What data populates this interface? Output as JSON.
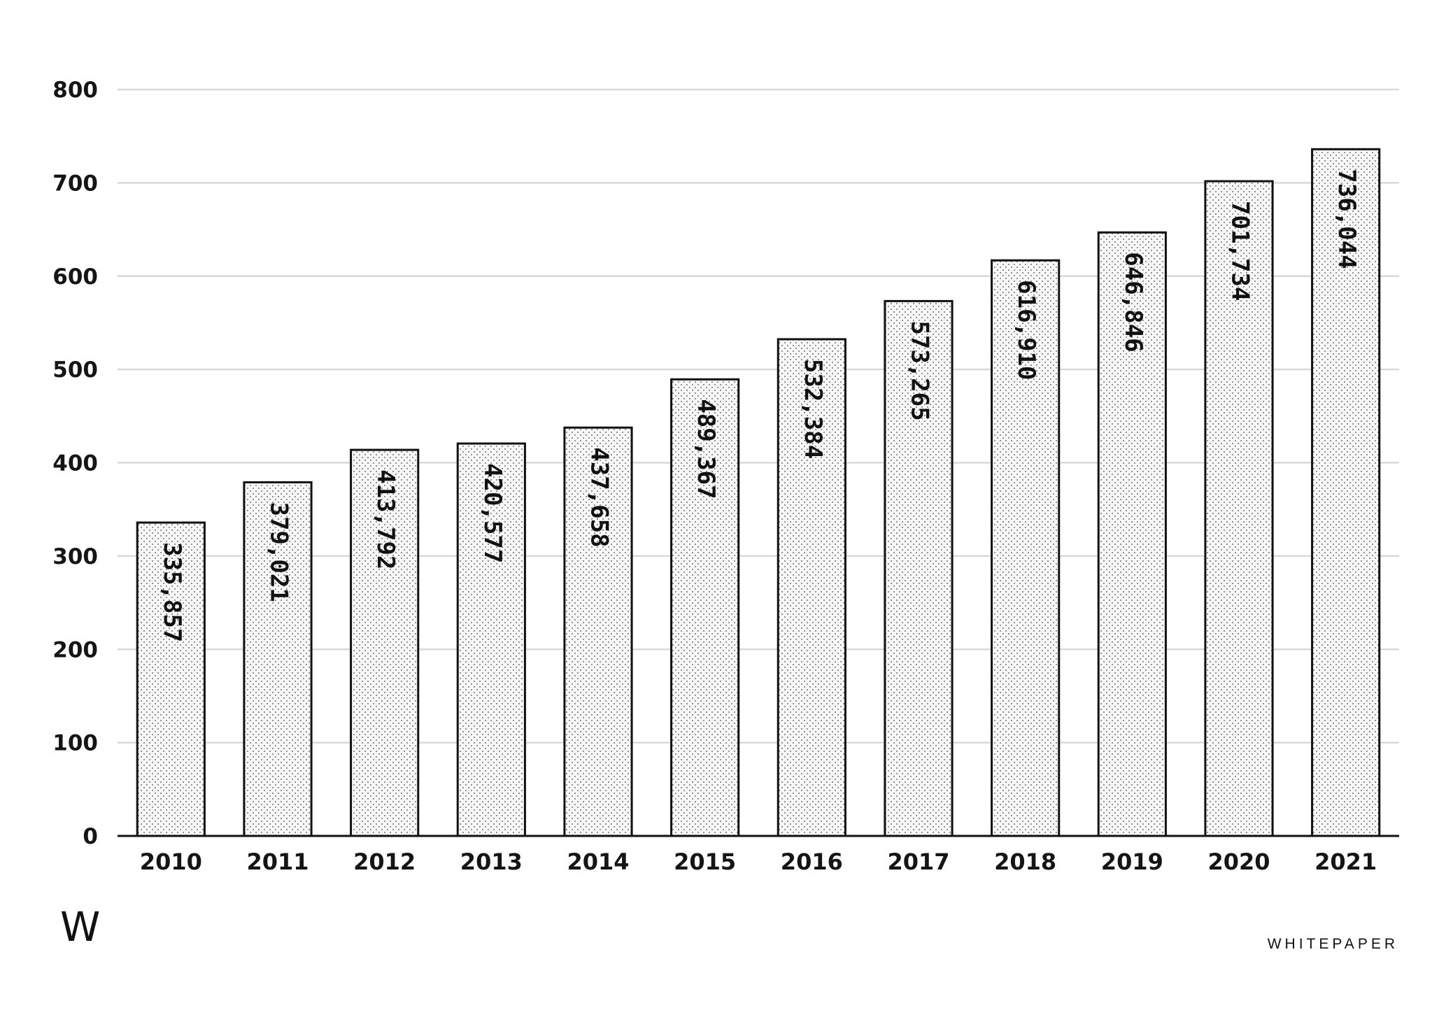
{
  "chart_data": {
    "type": "bar",
    "categories": [
      "2010",
      "2011",
      "2012",
      "2013",
      "2014",
      "2015",
      "2016",
      "2017",
      "2018",
      "2019",
      "2020",
      "2021"
    ],
    "values": [
      335857,
      379021,
      413792,
      420577,
      437658,
      489367,
      532384,
      573265,
      616910,
      646846,
      701734,
      736044
    ],
    "data_labels": [
      "335,857",
      "379,021",
      "413,792",
      "420,577",
      "437,658",
      "489,367",
      "532,384",
      "573,265",
      "616,910",
      "646,846",
      "701,734",
      "736,044"
    ],
    "y_axis_display_unit": 1000,
    "yticks": [
      "0",
      "100",
      "200",
      "300",
      "400",
      "500",
      "600",
      "700",
      "800"
    ],
    "ylim": [
      0,
      800
    ],
    "title": "",
    "xlabel": "",
    "ylabel": "",
    "grid": true,
    "legend": "none",
    "bar_fill": "#f6f6f6",
    "bar_stroke": "#111111",
    "grid_color": "#d9d9d9"
  },
  "branding": {
    "logo": "W",
    "name": "WHITEPAPER"
  }
}
